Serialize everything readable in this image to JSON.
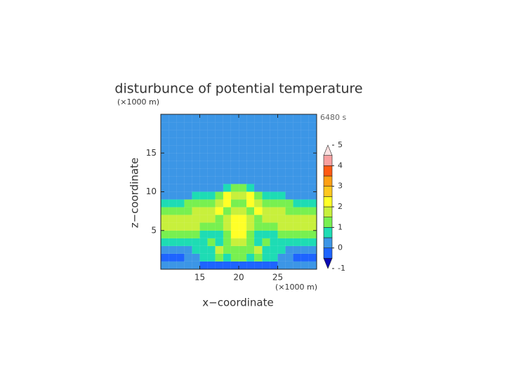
{
  "chart_data": {
    "type": "contour",
    "title": "disturbunce of potential temperature",
    "y_unit": "(×1000 m)",
    "x_unit": "(×1000 m)",
    "time_label": "6480 s",
    "xlabel": "x−coordinate",
    "ylabel": "z−coordinate",
    "xlim": [
      10,
      30
    ],
    "ylim": [
      0,
      20
    ],
    "xticks": [
      15,
      20,
      25
    ],
    "yticks": [
      5,
      10,
      15
    ],
    "x": [
      10.5,
      11.5,
      12.5,
      13.5,
      14.5,
      15.5,
      16.5,
      17.5,
      18.5,
      19.5,
      20.5,
      21.5,
      22.5,
      23.5,
      24.5,
      25.5,
      26.5,
      27.5,
      28.5,
      29.5
    ],
    "y": [
      19.5,
      18.5,
      17.5,
      16.5,
      15.5,
      14.5,
      13.5,
      12.5,
      11.5,
      10.5,
      9.5,
      8.5,
      7.5,
      6.5,
      5.5,
      4.5,
      3.5,
      2.5,
      1.5,
      0.5
    ],
    "z": [
      [
        0.2,
        0.2,
        0.2,
        0.2,
        0.2,
        0.2,
        0.2,
        0.2,
        0.2,
        0.2,
        0.2,
        0.2,
        0.2,
        0.2,
        0.2,
        0.2,
        0.2,
        0.2,
        0.2,
        0.2
      ],
      [
        0.2,
        0.2,
        0.2,
        0.2,
        0.2,
        0.2,
        0.2,
        0.2,
        0.2,
        0.2,
        0.2,
        0.2,
        0.2,
        0.2,
        0.2,
        0.2,
        0.2,
        0.2,
        0.2,
        0.2
      ],
      [
        0.2,
        0.2,
        0.2,
        0.2,
        0.2,
        0.2,
        0.2,
        0.2,
        0.2,
        0.2,
        0.2,
        0.2,
        0.2,
        0.2,
        0.2,
        0.2,
        0.2,
        0.2,
        0.2,
        0.2
      ],
      [
        0.2,
        0.2,
        0.2,
        0.2,
        0.2,
        0.2,
        0.2,
        0.2,
        0.2,
        0.2,
        0.2,
        0.2,
        0.2,
        0.2,
        0.2,
        0.2,
        0.2,
        0.2,
        0.2,
        0.2
      ],
      [
        0.2,
        0.2,
        0.2,
        0.2,
        0.2,
        0.2,
        0.2,
        0.2,
        0.2,
        0.2,
        0.2,
        0.2,
        0.2,
        0.2,
        0.2,
        0.2,
        0.2,
        0.2,
        0.2,
        0.2
      ],
      [
        0.2,
        0.2,
        0.2,
        0.2,
        0.2,
        0.2,
        0.2,
        0.2,
        0.2,
        0.2,
        0.2,
        0.2,
        0.2,
        0.2,
        0.2,
        0.2,
        0.2,
        0.2,
        0.2,
        0.2
      ],
      [
        0.2,
        0.2,
        0.2,
        0.2,
        0.2,
        0.2,
        0.2,
        0.2,
        0.2,
        0.2,
        0.2,
        0.2,
        0.2,
        0.2,
        0.2,
        0.2,
        0.2,
        0.2,
        0.2,
        0.2
      ],
      [
        0.2,
        0.2,
        0.2,
        0.2,
        0.2,
        0.2,
        0.2,
        0.2,
        0.2,
        0.2,
        0.2,
        0.2,
        0.2,
        0.2,
        0.2,
        0.2,
        0.2,
        0.2,
        0.2,
        0.2
      ],
      [
        0.2,
        0.2,
        0.2,
        0.2,
        0.2,
        0.2,
        0.2,
        0.2,
        0.2,
        0.2,
        0.2,
        0.2,
        0.2,
        0.2,
        0.2,
        0.2,
        0.2,
        0.2,
        0.2,
        0.2
      ],
      [
        0.2,
        0.2,
        0.2,
        0.2,
        0.2,
        0.2,
        0.2,
        0.2,
        0.7,
        1.2,
        1.2,
        0.7,
        0.2,
        0.2,
        0.2,
        0.2,
        0.2,
        0.2,
        0.2,
        0.2
      ],
      [
        0.2,
        0.2,
        0.2,
        0.2,
        0.7,
        0.7,
        0.7,
        1.2,
        2.2,
        1.7,
        1.7,
        2.2,
        1.2,
        0.7,
        0.7,
        0.7,
        0.2,
        0.2,
        0.2,
        0.2
      ],
      [
        0.7,
        0.7,
        0.7,
        1.2,
        1.2,
        1.2,
        1.2,
        1.7,
        2.2,
        1.2,
        1.2,
        2.2,
        1.7,
        1.2,
        1.2,
        1.2,
        1.2,
        0.7,
        0.7,
        0.7
      ],
      [
        1.2,
        1.2,
        1.2,
        1.2,
        1.7,
        1.7,
        1.7,
        2.2,
        1.2,
        1.7,
        1.7,
        1.2,
        2.2,
        1.7,
        1.7,
        1.7,
        1.2,
        1.2,
        1.2,
        1.2
      ],
      [
        1.7,
        1.7,
        1.7,
        1.7,
        1.7,
        1.7,
        1.7,
        1.2,
        1.7,
        2.2,
        2.2,
        1.7,
        1.2,
        1.7,
        1.7,
        1.7,
        1.7,
        1.7,
        1.7,
        1.7
      ],
      [
        1.7,
        1.7,
        1.7,
        1.7,
        1.7,
        1.2,
        1.2,
        1.2,
        1.7,
        2.2,
        2.2,
        1.7,
        1.2,
        1.2,
        1.2,
        1.7,
        1.7,
        1.7,
        1.7,
        1.7
      ],
      [
        1.2,
        1.2,
        1.2,
        1.2,
        1.2,
        0.7,
        0.7,
        0.7,
        1.2,
        2.2,
        2.2,
        1.2,
        0.7,
        0.7,
        0.7,
        1.2,
        1.2,
        1.2,
        1.2,
        1.2
      ],
      [
        0.7,
        0.7,
        0.7,
        0.7,
        0.7,
        0.7,
        1.2,
        0.7,
        1.2,
        1.7,
        1.7,
        1.2,
        0.7,
        1.2,
        0.7,
        0.7,
        0.7,
        0.7,
        0.7,
        0.7
      ],
      [
        0.2,
        0.2,
        0.2,
        0.2,
        0.7,
        0.7,
        0.7,
        1.7,
        1.2,
        1.2,
        1.2,
        1.2,
        1.7,
        0.7,
        0.7,
        0.7,
        0.2,
        0.2,
        0.2,
        0.2
      ],
      [
        -0.2,
        -0.2,
        -0.2,
        0.2,
        0.2,
        0.7,
        0.7,
        1.2,
        0.7,
        1.2,
        1.2,
        0.7,
        1.2,
        0.7,
        0.7,
        0.2,
        0.2,
        -0.2,
        -0.2,
        -0.2
      ],
      [
        0.2,
        0.2,
        0.2,
        0.2,
        0.2,
        -0.2,
        -0.2,
        -0.2,
        -0.2,
        -0.2,
        -0.2,
        -0.2,
        -0.2,
        -0.2,
        -0.2,
        0.2,
        0.2,
        0.2,
        0.2,
        0.2
      ]
    ],
    "levels": [
      -0.5,
      0,
      0.5,
      1,
      1.5,
      2,
      2.5,
      3,
      3.5,
      4,
      4.5
    ],
    "level_colors": [
      "#1e64ff",
      "#3c96e6",
      "#1edcb4",
      "#78f050",
      "#c8f03c",
      "#ffff28",
      "#ffc81e",
      "#ffa014",
      "#ff5a14",
      "#f8a0a0"
    ],
    "under_color": "#0a0ab4",
    "over_color": "#fbe0e0",
    "colorbar_lim": [
      -1,
      5
    ],
    "colorbar_ticks": [
      -1,
      0,
      1,
      2,
      3,
      4,
      5
    ]
  }
}
